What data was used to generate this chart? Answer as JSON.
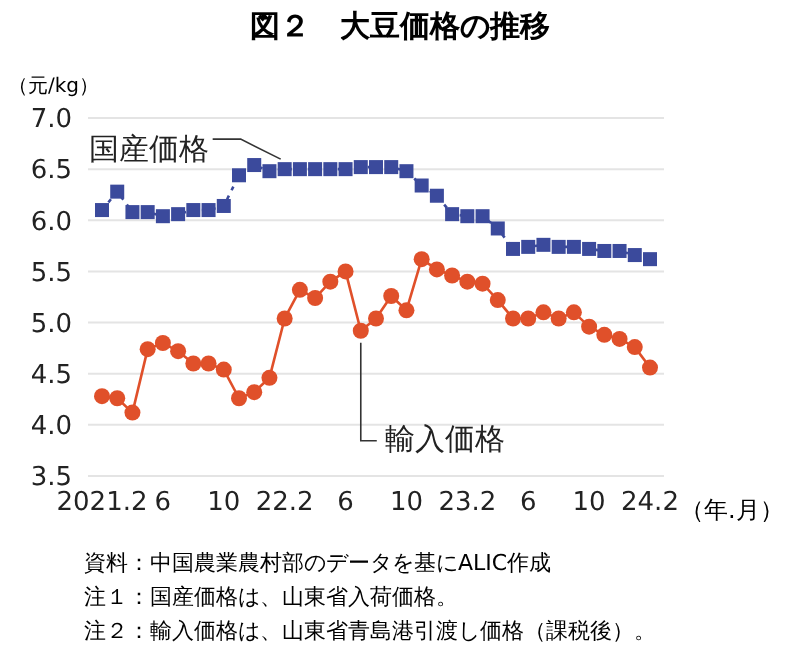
{
  "chart_data": {
    "type": "line",
    "title": "図２　大豆価格の推移",
    "ylabel": "（元/kg）",
    "xlabel": "（年.月）",
    "categories": [
      "2021.2",
      null,
      null,
      null,
      "6",
      null,
      null,
      null,
      "10",
      null,
      null,
      null,
      "22.2",
      null,
      null,
      null,
      "6",
      null,
      null,
      null,
      "10",
      null,
      null,
      null,
      "23.2",
      null,
      null,
      null,
      "6",
      null,
      null,
      null,
      "10",
      null,
      null,
      null,
      "24.2"
    ],
    "series": [
      {
        "name": "国産価格",
        "color": "#3b4a9c",
        "marker": "square",
        "line_style": "dotted",
        "values": [
          6.1,
          6.28,
          6.08,
          6.08,
          6.04,
          6.06,
          6.1,
          6.1,
          6.14,
          6.44,
          6.54,
          6.48,
          6.5,
          6.5,
          6.5,
          6.5,
          6.5,
          6.52,
          6.52,
          6.52,
          6.48,
          6.34,
          6.24,
          6.06,
          6.04,
          6.04,
          5.92,
          5.72,
          5.74,
          5.76,
          5.74,
          5.74,
          5.72,
          5.7,
          5.7,
          5.66,
          5.62
        ]
      },
      {
        "name": "輸入価格",
        "color": "#e0502a",
        "marker": "circle",
        "line_style": "solid",
        "values": [
          4.28,
          4.26,
          4.12,
          4.74,
          4.8,
          4.72,
          4.6,
          4.6,
          4.54,
          4.26,
          4.32,
          4.46,
          5.04,
          5.32,
          5.24,
          5.4,
          5.5,
          4.92,
          5.04,
          5.26,
          5.12,
          5.62,
          5.52,
          5.46,
          5.4,
          5.38,
          5.22,
          5.04,
          5.04,
          5.1,
          5.04,
          5.1,
          4.96,
          4.88,
          4.84,
          4.76,
          4.56
        ]
      }
    ],
    "ylim": [
      3.5,
      7.0
    ],
    "yticks": [
      {
        "value": 3.5,
        "label": "3.5"
      },
      {
        "value": 4,
        "label": "4.0"
      },
      {
        "value": 4.5,
        "label": "4.5"
      },
      {
        "value": 5,
        "label": "5.0"
      },
      {
        "value": 5.5,
        "label": "5.5"
      },
      {
        "value": 6,
        "label": "6.0"
      },
      {
        "value": 6.5,
        "label": "6.5"
      },
      {
        "value": 7,
        "label": "7.0"
      }
    ],
    "grid": "y",
    "legend": false,
    "annotations": [
      "資料：中国農業農村部のデータを基にALIC作成",
      "注１：国産価格は、山東省入荷価格。",
      "注２：輸入価格は、山東省青島港引渡し価格（課税後）。"
    ]
  }
}
